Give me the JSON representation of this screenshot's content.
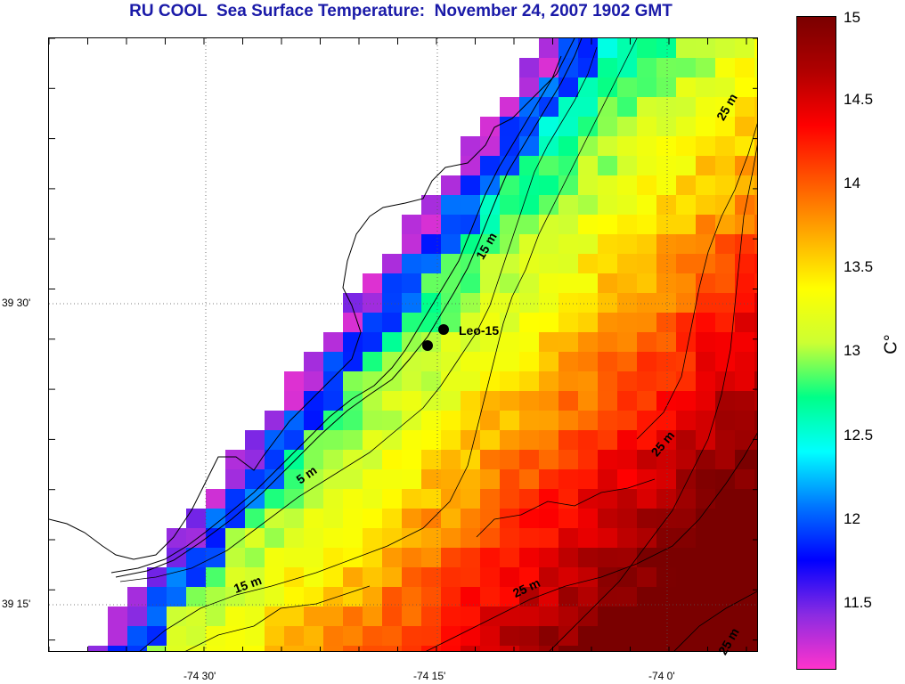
{
  "title": "RU COOL  Sea Surface Temperature:  November 24, 2007 1902 GMT",
  "axes": {
    "x_ticks": [
      "-74 30'",
      "-74 15'",
      "-74 0'"
    ],
    "y_ticks": [
      "39 30'",
      "39 15'"
    ]
  },
  "colorbar": {
    "unit": "C°",
    "ticks": [
      "15",
      "14.5",
      "14",
      "13.5",
      "13",
      "12.5",
      "12",
      "11.5"
    ],
    "range": [
      11.1,
      15.0
    ],
    "colors": [
      "#ff33cc",
      "#8a2be2",
      "#0000ff",
      "#0077ff",
      "#00ffff",
      "#00ff88",
      "#ccff33",
      "#ffff00",
      "#ffaa00",
      "#ff5500",
      "#ff0000",
      "#b00000",
      "#7a0000"
    ]
  },
  "contour_labels": [
    "25 m",
    "15 m",
    "25 m",
    "5 m",
    "15 m",
    "25 m",
    "25 m"
  ],
  "station": {
    "name": "Leo-15"
  }
}
